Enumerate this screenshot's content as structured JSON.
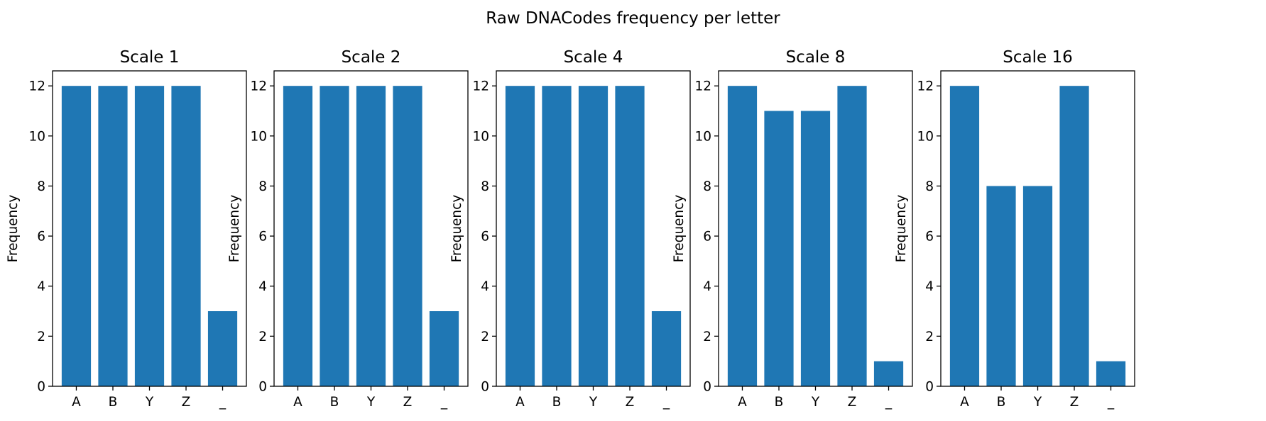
{
  "figure": {
    "title": "Raw DNACodes frequency per letter"
  },
  "chart_data": [
    {
      "type": "bar",
      "title": "Scale 1",
      "categories": [
        "A",
        "B",
        "Y",
        "Z",
        "_"
      ],
      "values": [
        12,
        12,
        12,
        12,
        3
      ],
      "xlabel": "",
      "ylabel": "Frequency",
      "ylim": [
        0,
        12.6
      ],
      "yticks": [
        0,
        2,
        4,
        6,
        8,
        10,
        12
      ],
      "color": "#1f77b4",
      "grid": false
    },
    {
      "type": "bar",
      "title": "Scale 2",
      "categories": [
        "A",
        "B",
        "Y",
        "Z",
        "_"
      ],
      "values": [
        12,
        12,
        12,
        12,
        3
      ],
      "xlabel": "",
      "ylabel": "Frequency",
      "ylim": [
        0,
        12.6
      ],
      "yticks": [
        0,
        2,
        4,
        6,
        8,
        10,
        12
      ],
      "color": "#1f77b4",
      "grid": false
    },
    {
      "type": "bar",
      "title": "Scale 4",
      "categories": [
        "A",
        "B",
        "Y",
        "Z",
        "_"
      ],
      "values": [
        12,
        12,
        12,
        12,
        3
      ],
      "xlabel": "",
      "ylabel": "Frequency",
      "ylim": [
        0,
        12.6
      ],
      "yticks": [
        0,
        2,
        4,
        6,
        8,
        10,
        12
      ],
      "color": "#1f77b4",
      "grid": false
    },
    {
      "type": "bar",
      "title": "Scale 8",
      "categories": [
        "A",
        "B",
        "Y",
        "Z",
        "_"
      ],
      "values": [
        12,
        11,
        11,
        12,
        1
      ],
      "xlabel": "",
      "ylabel": "Frequency",
      "ylim": [
        0,
        12.6
      ],
      "yticks": [
        0,
        2,
        4,
        6,
        8,
        10,
        12
      ],
      "color": "#1f77b4",
      "grid": false
    },
    {
      "type": "bar",
      "title": "Scale 16",
      "categories": [
        "A",
        "B",
        "Y",
        "Z",
        "_"
      ],
      "values": [
        12,
        8,
        8,
        12,
        1
      ],
      "xlabel": "",
      "ylabel": "Frequency",
      "ylim": [
        0,
        12.6
      ],
      "yticks": [
        0,
        2,
        4,
        6,
        8,
        10,
        12
      ],
      "color": "#1f77b4",
      "grid": false
    }
  ]
}
